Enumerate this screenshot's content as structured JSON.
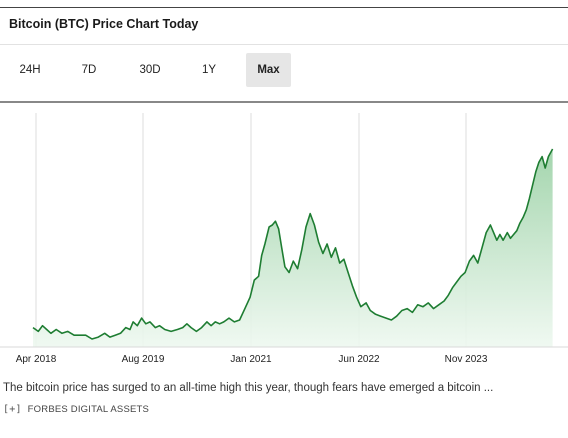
{
  "header": {
    "title": "Bitcoin (BTC) Price Chart Today"
  },
  "tabs": [
    {
      "label": "24H",
      "active": false
    },
    {
      "label": "7D",
      "active": false
    },
    {
      "label": "30D",
      "active": false
    },
    {
      "label": "1Y",
      "active": false
    },
    {
      "label": "Max",
      "active": true
    }
  ],
  "caption": "The bitcoin price has surged to an all-time high this year, though fears have emerged a bitcoin ...",
  "credit": {
    "expand": "[+]",
    "source": "FORBES DIGITAL ASSETS"
  },
  "colors": {
    "line": "#1e7d32",
    "fill_top": "#9fd3a9",
    "fill_bottom": "#eef8f0",
    "grid": "#dcdcdc"
  },
  "chart_data": {
    "type": "area",
    "x_tick_labels": [
      "Apr 2018",
      "Aug 2019",
      "Jan 2021",
      "Jun 2022",
      "Nov 2023"
    ],
    "y_axis_shown": false,
    "grid": "vertical",
    "series": [
      {
        "values": [
          [
            0.0,
            0.06
          ],
          [
            0.01,
            0.04
          ],
          [
            0.018,
            0.07
          ],
          [
            0.026,
            0.05
          ],
          [
            0.034,
            0.03
          ],
          [
            0.044,
            0.05
          ],
          [
            0.055,
            0.03
          ],
          [
            0.066,
            0.04
          ],
          [
            0.078,
            0.02
          ],
          [
            0.09,
            0.02
          ],
          [
            0.1,
            0.02
          ],
          [
            0.112,
            0.0
          ],
          [
            0.124,
            0.01
          ],
          [
            0.136,
            0.03
          ],
          [
            0.146,
            0.01
          ],
          [
            0.156,
            0.02
          ],
          [
            0.166,
            0.03
          ],
          [
            0.176,
            0.06
          ],
          [
            0.184,
            0.05
          ],
          [
            0.19,
            0.09
          ],
          [
            0.198,
            0.07
          ],
          [
            0.206,
            0.11
          ],
          [
            0.214,
            0.08
          ],
          [
            0.222,
            0.09
          ],
          [
            0.232,
            0.06
          ],
          [
            0.24,
            0.07
          ],
          [
            0.25,
            0.05
          ],
          [
            0.262,
            0.04
          ],
          [
            0.274,
            0.05
          ],
          [
            0.284,
            0.06
          ],
          [
            0.292,
            0.08
          ],
          [
            0.3,
            0.06
          ],
          [
            0.31,
            0.04
          ],
          [
            0.32,
            0.06
          ],
          [
            0.33,
            0.09
          ],
          [
            0.338,
            0.07
          ],
          [
            0.346,
            0.09
          ],
          [
            0.354,
            0.08
          ],
          [
            0.362,
            0.09
          ],
          [
            0.372,
            0.11
          ],
          [
            0.382,
            0.09
          ],
          [
            0.392,
            0.1
          ],
          [
            0.402,
            0.16
          ],
          [
            0.412,
            0.22
          ],
          [
            0.42,
            0.31
          ],
          [
            0.428,
            0.33
          ],
          [
            0.434,
            0.44
          ],
          [
            0.44,
            0.5
          ],
          [
            0.448,
            0.59
          ],
          [
            0.454,
            0.6
          ],
          [
            0.46,
            0.62
          ],
          [
            0.466,
            0.58
          ],
          [
            0.472,
            0.48
          ],
          [
            0.478,
            0.38
          ],
          [
            0.486,
            0.35
          ],
          [
            0.494,
            0.41
          ],
          [
            0.502,
            0.37
          ],
          [
            0.51,
            0.47
          ],
          [
            0.518,
            0.59
          ],
          [
            0.526,
            0.66
          ],
          [
            0.534,
            0.6
          ],
          [
            0.542,
            0.51
          ],
          [
            0.55,
            0.45
          ],
          [
            0.558,
            0.5
          ],
          [
            0.566,
            0.43
          ],
          [
            0.574,
            0.48
          ],
          [
            0.582,
            0.4
          ],
          [
            0.59,
            0.42
          ],
          [
            0.598,
            0.35
          ],
          [
            0.606,
            0.28
          ],
          [
            0.614,
            0.22
          ],
          [
            0.622,
            0.17
          ],
          [
            0.632,
            0.19
          ],
          [
            0.64,
            0.15
          ],
          [
            0.65,
            0.13
          ],
          [
            0.66,
            0.12
          ],
          [
            0.67,
            0.11
          ],
          [
            0.68,
            0.1
          ],
          [
            0.69,
            0.12
          ],
          [
            0.7,
            0.15
          ],
          [
            0.71,
            0.16
          ],
          [
            0.72,
            0.14
          ],
          [
            0.73,
            0.18
          ],
          [
            0.74,
            0.17
          ],
          [
            0.75,
            0.19
          ],
          [
            0.76,
            0.16
          ],
          [
            0.77,
            0.18
          ],
          [
            0.78,
            0.2
          ],
          [
            0.788,
            0.23
          ],
          [
            0.796,
            0.27
          ],
          [
            0.804,
            0.3
          ],
          [
            0.812,
            0.33
          ],
          [
            0.82,
            0.35
          ],
          [
            0.828,
            0.41
          ],
          [
            0.836,
            0.44
          ],
          [
            0.844,
            0.4
          ],
          [
            0.852,
            0.48
          ],
          [
            0.86,
            0.56
          ],
          [
            0.868,
            0.6
          ],
          [
            0.874,
            0.56
          ],
          [
            0.88,
            0.52
          ],
          [
            0.886,
            0.55
          ],
          [
            0.892,
            0.52
          ],
          [
            0.9,
            0.56
          ],
          [
            0.906,
            0.53
          ],
          [
            0.912,
            0.55
          ],
          [
            0.918,
            0.57
          ],
          [
            0.924,
            0.61
          ],
          [
            0.93,
            0.64
          ],
          [
            0.936,
            0.68
          ],
          [
            0.942,
            0.74
          ],
          [
            0.948,
            0.81
          ],
          [
            0.954,
            0.88
          ],
          [
            0.96,
            0.93
          ],
          [
            0.966,
            0.96
          ],
          [
            0.972,
            0.9
          ],
          [
            0.978,
            0.96
          ],
          [
            0.986,
            1.0
          ]
        ]
      }
    ]
  }
}
